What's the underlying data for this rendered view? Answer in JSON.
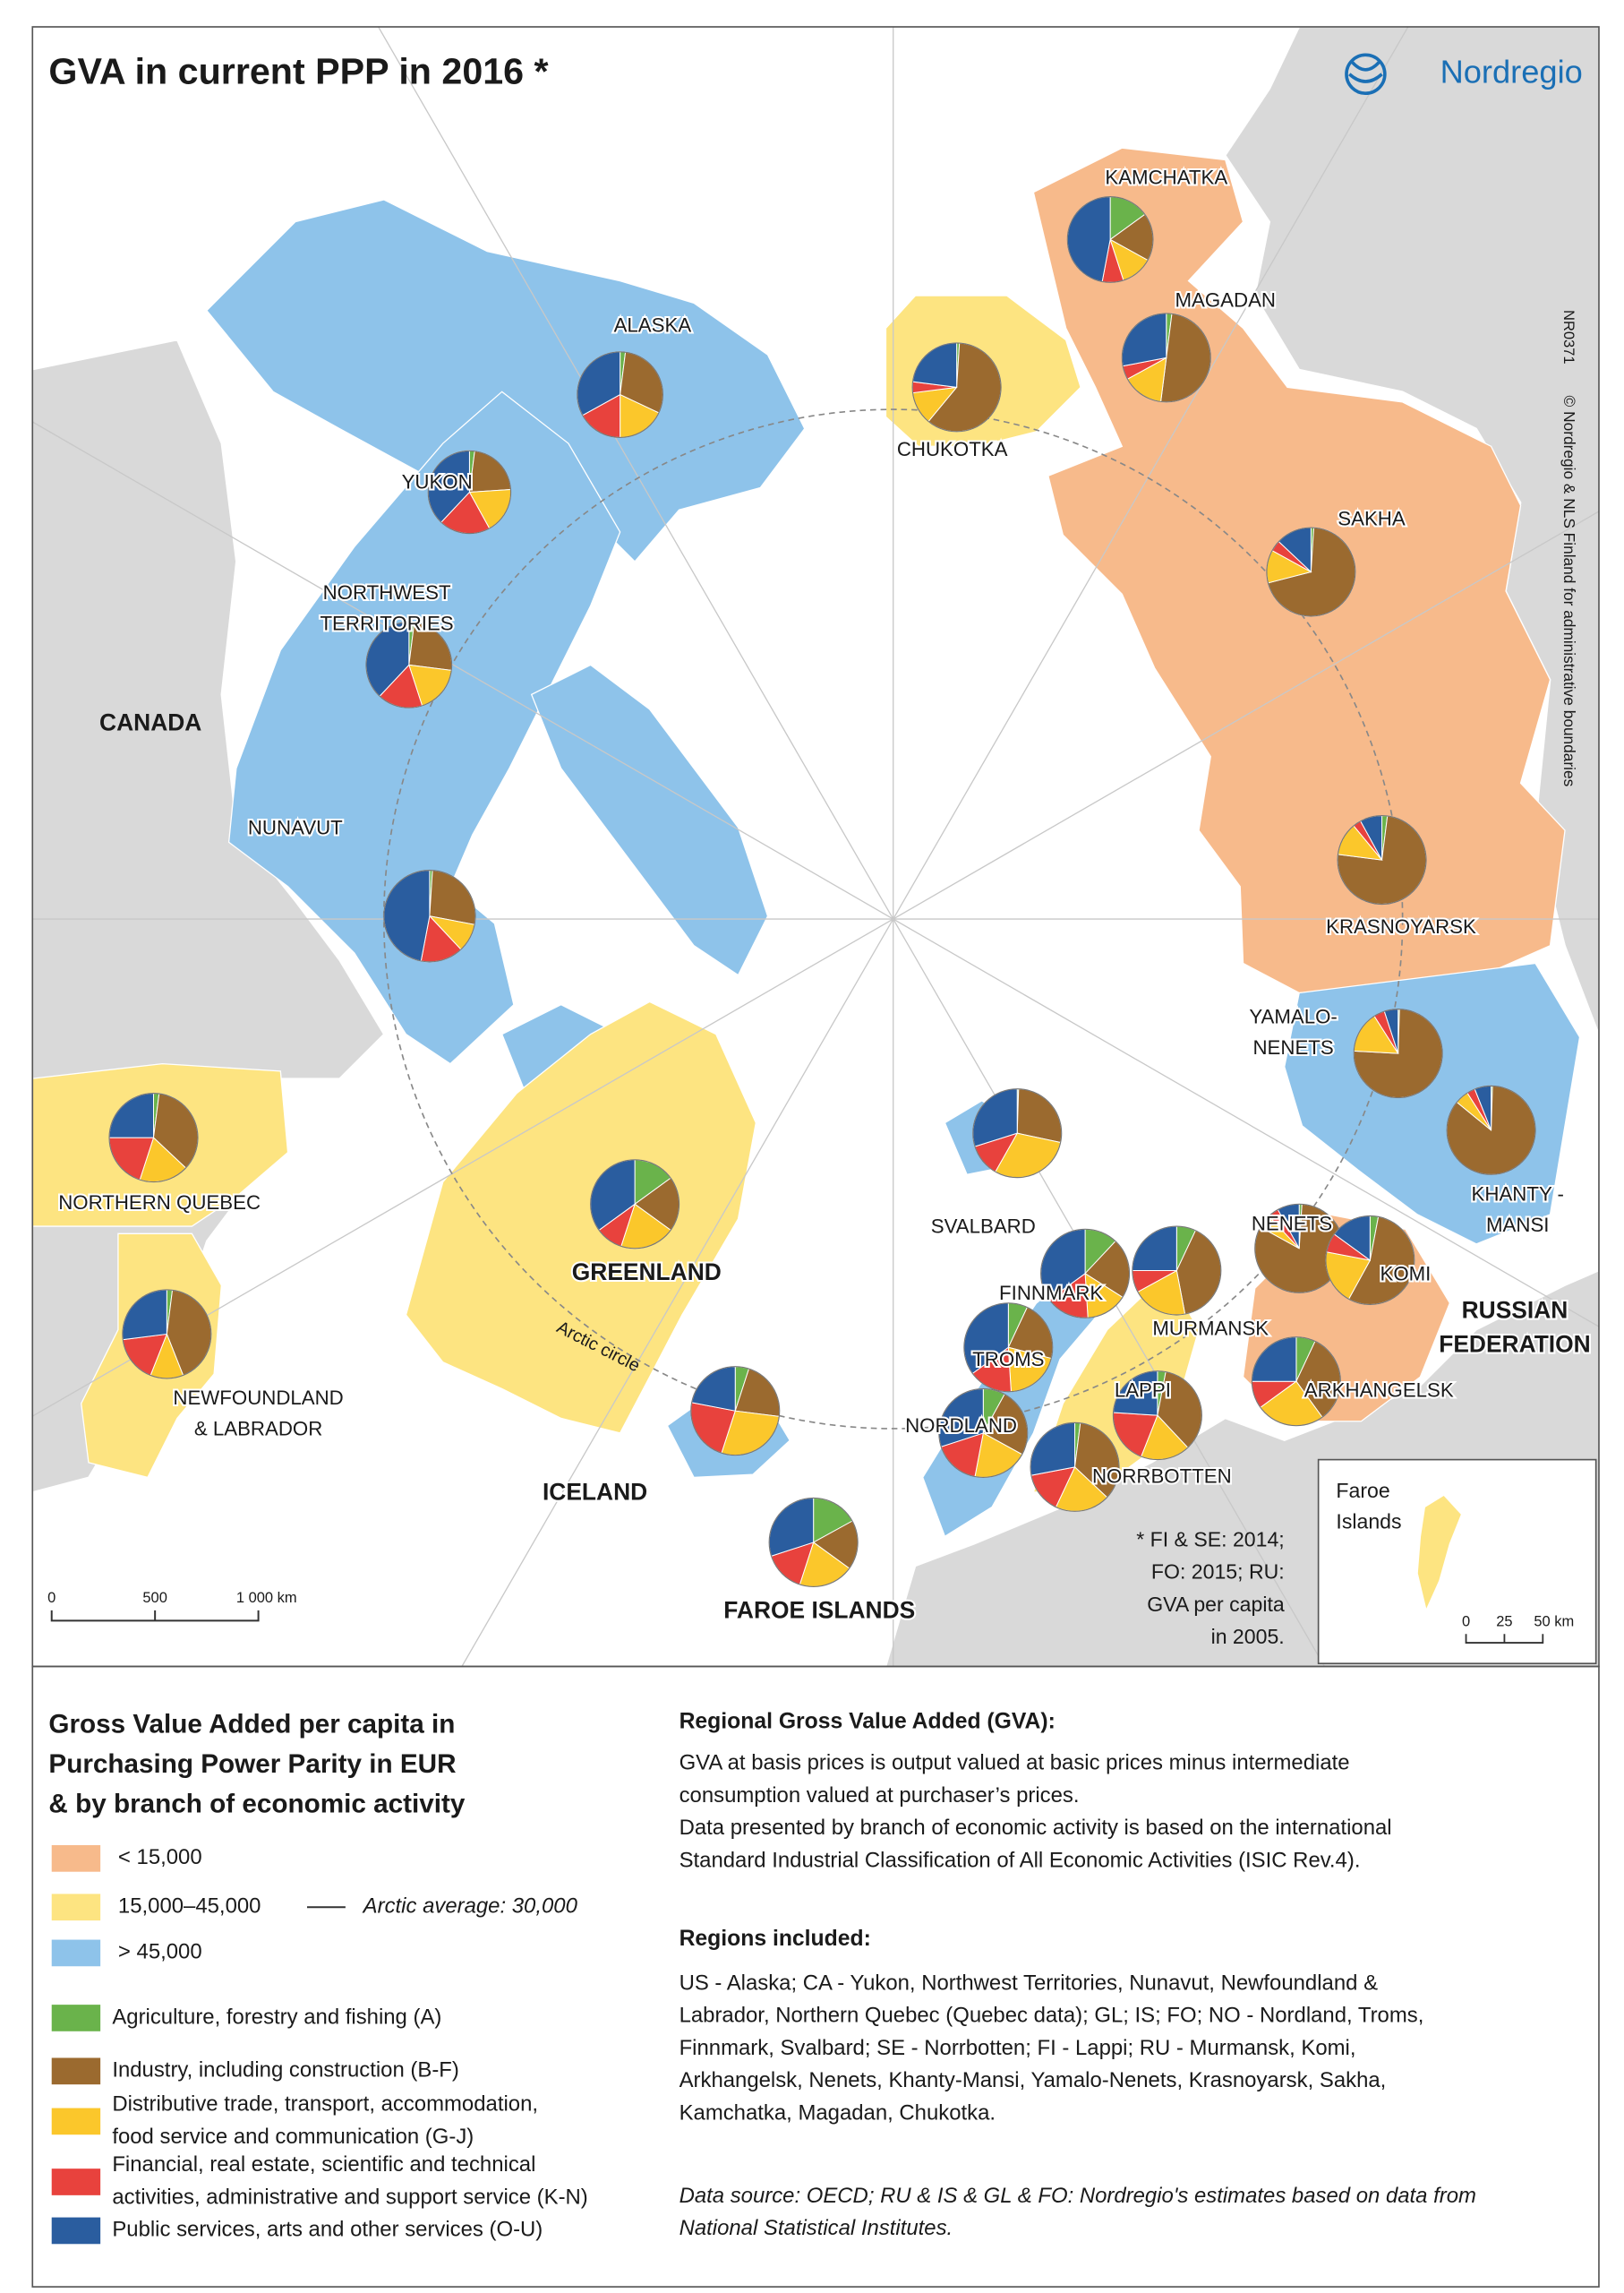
{
  "header": {
    "title": "GVA  in current PPP in 2016 *",
    "logo": "Nordregio",
    "map_id": "NR0371",
    "copyright": "© Nordregio & NLS Finland for administrative boundaries"
  },
  "map": {
    "countries": [
      {
        "lines": [
          "CANADA"
        ]
      },
      {
        "lines": [
          "RUSSIAN",
          "FEDERATION"
        ]
      }
    ],
    "arctic_circle": "Arctic circle",
    "note": [
      "* FI & SE: 2014;",
      "FO: 2015; RU:",
      "GVA per capita",
      "in 2005."
    ],
    "scale": [
      "0",
      "500",
      "1 000 km"
    ],
    "inset": {
      "title": [
        "Faroe",
        "Islands"
      ],
      "scale": [
        "0",
        "25",
        "50 km"
      ]
    }
  },
  "regions": [
    {
      "label": [
        "ALASKA"
      ],
      "color": "#8ec3ea",
      "shares": [
        2,
        30,
        18,
        17,
        33
      ]
    },
    {
      "label": [
        "YUKON"
      ],
      "color": "#8ec3ea",
      "shares": [
        2,
        22,
        18,
        20,
        38
      ]
    },
    {
      "label": [
        "NORTHWEST",
        "TERRITORIES"
      ],
      "color": "#8ec3ea",
      "shares": [
        2,
        25,
        18,
        17,
        38
      ]
    },
    {
      "label": [
        "NUNAVUT"
      ],
      "color": "#8ec3ea",
      "shares": [
        1,
        27,
        10,
        15,
        47
      ]
    },
    {
      "label": [
        "NORTHERN QUEBEC"
      ],
      "color": "#fde481",
      "shares": [
        2,
        35,
        18,
        20,
        25
      ]
    },
    {
      "label": [
        "NEWFOUNDLAND",
        "& LABRADOR"
      ],
      "color": "#fde481",
      "shares": [
        2,
        42,
        12,
        17,
        27
      ]
    },
    {
      "label": [
        "GREENLAND"
      ],
      "color": "#fde481",
      "shares": [
        15,
        20,
        20,
        10,
        35
      ]
    },
    {
      "label": [
        "ICELAND"
      ],
      "color": "#8ec3ea",
      "shares": [
        5,
        22,
        28,
        23,
        22
      ]
    },
    {
      "label": [
        "FAROE ISLANDS"
      ],
      "color": "#fde481",
      "shares": [
        17,
        18,
        20,
        15,
        30
      ]
    },
    {
      "label": [
        "KAMCHATKA"
      ],
      "color": "#f7ba8b",
      "shares": [
        15,
        18,
        12,
        8,
        47
      ]
    },
    {
      "label": [
        "MAGADAN"
      ],
      "color": "#f7ba8b",
      "shares": [
        2,
        50,
        15,
        5,
        28
      ]
    },
    {
      "label": [
        "CHUKOTKA"
      ],
      "color": "#fde481",
      "shares": [
        1,
        60,
        12,
        4,
        23
      ]
    },
    {
      "label": [
        "SAKHA"
      ],
      "color": "#f7ba8b",
      "shares": [
        1,
        70,
        12,
        4,
        13
      ]
    },
    {
      "label": [
        "KRASNOYARSK"
      ],
      "color": "#f7ba8b",
      "shares": [
        2,
        75,
        12,
        3,
        8
      ]
    },
    {
      "label": [
        "YAMALO-",
        "NENETS"
      ],
      "color": "#8ec3ea",
      "shares": [
        0.5,
        75,
        15,
        4,
        5
      ]
    },
    {
      "label": [
        "KHANTY -",
        "MANSI"
      ],
      "color": "#8ec3ea",
      "shares": [
        0.5,
        85,
        5,
        3,
        6
      ]
    },
    {
      "label": [
        "SVALBARD"
      ],
      "color": "#8ec3ea",
      "shares": [
        0.5,
        28,
        30,
        12,
        30
      ]
    },
    {
      "label": [
        "NENETS"
      ],
      "color": "#f7ba8b",
      "shares": [
        1,
        82,
        5,
        4,
        8
      ]
    },
    {
      "label": [
        "KOMI"
      ],
      "color": "#f7ba8b",
      "shares": [
        3,
        55,
        20,
        7,
        15
      ]
    },
    {
      "label": [
        "MURMANSK"
      ],
      "color": "#f7ba8b",
      "shares": [
        7,
        40,
        20,
        8,
        25
      ]
    },
    {
      "label": [
        "FINNMARK"
      ],
      "color": "#8ec3ea",
      "shares": [
        12,
        22,
        15,
        16,
        35
      ]
    },
    {
      "label": [
        "TROMS"
      ],
      "color": "#8ec3ea",
      "shares": [
        7,
        22,
        20,
        16,
        35
      ]
    },
    {
      "label": [
        "ARKHANGELSK"
      ],
      "color": "#f7ba8b",
      "shares": [
        7,
        33,
        25,
        10,
        25
      ]
    },
    {
      "label": [
        "LAPPI"
      ],
      "color": "#fde481",
      "shares": [
        3,
        35,
        18,
        20,
        24
      ]
    },
    {
      "label": [
        "NORDLAND"
      ],
      "color": "#8ec3ea",
      "shares": [
        8,
        25,
        20,
        17,
        30
      ]
    },
    {
      "label": [
        "NORRBOTTEN"
      ],
      "color": "#fde481",
      "shares": [
        2,
        35,
        20,
        15,
        28
      ]
    }
  ],
  "legend": {
    "title": [
      "Gross Value Added per capita in",
      "Purchasing Power Parity in EUR",
      "& by branch of economic activity"
    ],
    "classes": [
      {
        "label": "< 15,000",
        "color": "#f7ba8b"
      },
      {
        "label": "15,000–45,000",
        "color": "#fde481"
      },
      {
        "label": "> 45,000",
        "color": "#8ec3ea"
      }
    ],
    "arctic_average": "Arctic average: 30,000",
    "sectors": [
      {
        "lines": [
          "Agriculture, forestry and fishing (A)"
        ],
        "color": "#6ab34b"
      },
      {
        "lines": [
          "Industry, including construction (B-F)"
        ],
        "color": "#9b6a2f"
      },
      {
        "lines": [
          "Distributive trade, transport, accommodation,",
          "food service and communication (G-J)"
        ],
        "color": "#fbc72b"
      },
      {
        "lines": [
          "Financial, real estate, scientific and technical",
          "activities, administrative and support service (K-N)"
        ],
        "color": "#e8423d"
      },
      {
        "lines": [
          "Public services, arts and other services (O-U)"
        ],
        "color": "#2a5d9f"
      }
    ]
  },
  "info": {
    "gva_heading": "Regional Gross Value Added (GVA):",
    "gva_text": [
      "GVA at basis prices is output valued at basic prices minus intermediate",
      "consumption valued at purchaser’s prices.",
      "Data presented by branch of economic activity is based on the international",
      "Standard Industrial Classification of All Economic Activities (ISIC Rev.4)."
    ],
    "regions_heading": "Regions included:",
    "regions_text": [
      "US - Alaska; CA -  Yukon, Northwest Territories, Nunavut, Newfoundland &",
      "Labrador, Northern Quebec (Quebec data); GL; IS; FO; NO - Nordland, Troms,",
      "Finnmark, Svalbard; SE - Norrbotten; FI - Lappi; RU - Murmansk, Komi,",
      "Arkhangelsk, Nenets, Khanty-Mansi, Yamalo-Nenets, Krasnoyarsk, Sakha,",
      "Kamchatka, Magadan, Chukotka."
    ],
    "source": [
      "Data source: OECD; RU & IS & GL & FO: Nordregio's estimates based on data from",
      "National Statistical Institutes."
    ]
  }
}
